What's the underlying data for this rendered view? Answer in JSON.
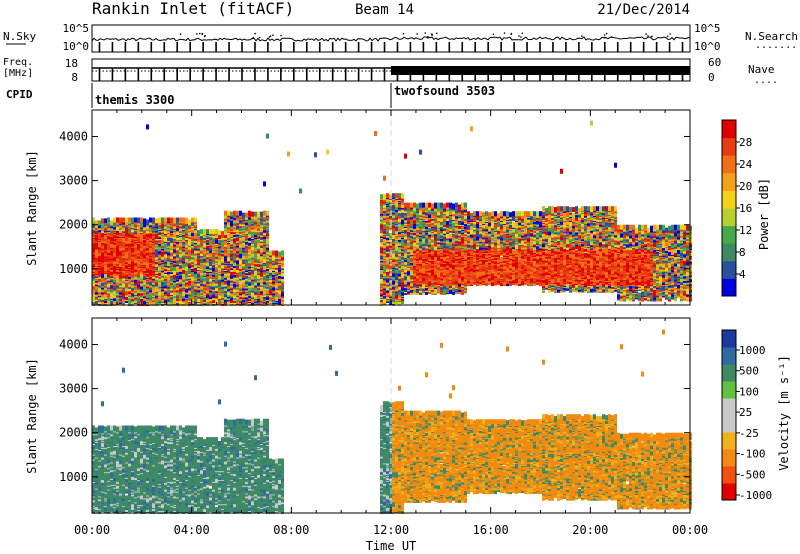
{
  "header": {
    "title": "Rankin Inlet (fitACF)",
    "beam": "Beam 14",
    "date": "21/Dec/2014"
  },
  "colors": {
    "power": [
      "#0000e0",
      "#2a4f9e",
      "#3e8a64",
      "#48a84a",
      "#b9d12e",
      "#f5d21a",
      "#f5a21a",
      "#f07018",
      "#e83c14",
      "#e00000"
    ],
    "velocity": [
      "#e00000",
      "#f05010",
      "#f08a10",
      "#f4b01a",
      "#c8c8c8",
      "#c8c8c8",
      "#60c040",
      "#3e8a64",
      "#2f6aa0",
      "#1a3aa0"
    ],
    "speckle_light": "#c8c8c8"
  },
  "chart_data": [
    {
      "id": "nsky-nsearch",
      "type": "line",
      "left_label": "N.Sky",
      "right_label": "N.Search",
      "left_ticks": [
        "10^5",
        "10^0"
      ],
      "right_ticks": [
        "10^5",
        "10^0"
      ],
      "x_range_hours": [
        0,
        24
      ]
    },
    {
      "id": "freq-nave",
      "type": "line",
      "left_label_top": "Freq.",
      "left_label_unit": "[MHz]",
      "right_label": "Nave",
      "left_ticks": [
        "18",
        "8"
      ],
      "right_ticks": [
        "60",
        "0"
      ],
      "x_range_hours": [
        0,
        24
      ]
    },
    {
      "id": "cpid",
      "type": "table",
      "label": "CPID",
      "segments": [
        {
          "start_hour": 0,
          "name": "themis 3300"
        },
        {
          "start_hour": 12,
          "name": "twofsound 3503"
        }
      ]
    },
    {
      "id": "power",
      "type": "heatmap",
      "ylabel": "Slant Range [km]",
      "yticks": [
        "1000",
        "2000",
        "3000",
        "4000"
      ],
      "ytick_values": [
        1000,
        2000,
        3000,
        4000
      ],
      "ylim": [
        180,
        4600
      ],
      "colorbar_label": "Power [dB]",
      "colorbar_ticks": [
        "4",
        "8",
        "12",
        "16",
        "20",
        "24",
        "28"
      ],
      "colorbar_values": [
        4,
        8,
        12,
        16,
        20,
        24,
        28
      ],
      "colorbar_range": [
        0,
        32
      ]
    },
    {
      "id": "velocity",
      "type": "heatmap",
      "ylabel": "Slant Range [km]",
      "yticks": [
        "1000",
        "2000",
        "3000",
        "4000"
      ],
      "ytick_values": [
        1000,
        2000,
        3000,
        4000
      ],
      "ylim": [
        180,
        4600
      ],
      "colorbar_label": "Velocity [m s⁻¹]",
      "colorbar_ticks": [
        "1000",
        "500",
        "100",
        "25",
        "-25",
        "-100",
        "-500",
        "-1000"
      ],
      "xlabel": "Time UT",
      "xticks": [
        "00:00",
        "04:00",
        "08:00",
        "12:00",
        "16:00",
        "20:00",
        "00:00"
      ],
      "xtick_hours": [
        0,
        4,
        8,
        12,
        16,
        20,
        24
      ]
    }
  ]
}
